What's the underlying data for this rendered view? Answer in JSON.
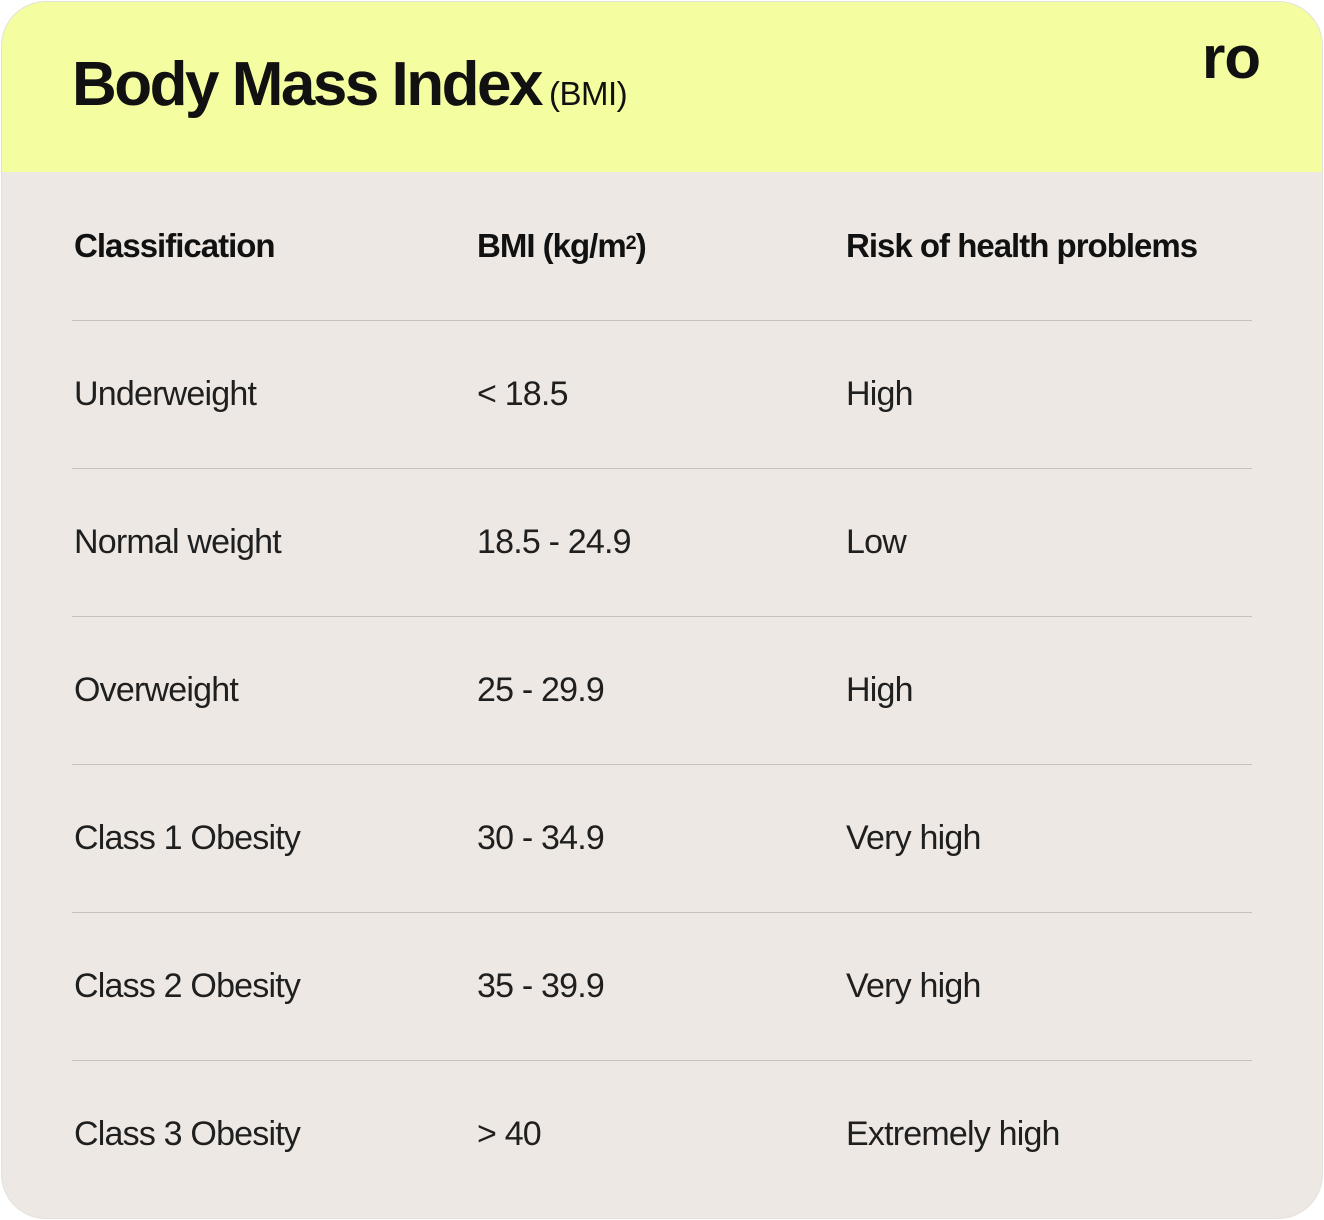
{
  "header": {
    "title": "Body Mass Index",
    "subtitle": "(BMI)",
    "logo_text": "ro",
    "background_color": "#f4fd9f"
  },
  "table": {
    "columns": [
      "Classification",
      "BMI (kg/m",
      "Risk of health problems"
    ],
    "bmi_unit_superscript": "2",
    "bmi_unit_close": ")",
    "rows": [
      {
        "classification": "Underweight",
        "bmi": "< 18.5",
        "risk": "High"
      },
      {
        "classification": "Normal weight",
        "bmi": "18.5 - 24.9",
        "risk": "Low"
      },
      {
        "classification": "Overweight",
        "bmi": "25 - 29.9",
        "risk": "High"
      },
      {
        "classification": "Class 1 Obesity",
        "bmi": "30 - 34.9",
        "risk": "Very high"
      },
      {
        "classification": "Class 2 Obesity",
        "bmi": "35 - 39.9",
        "risk": "Very high"
      },
      {
        "classification": "Class 3 Obesity",
        "bmi": "> 40",
        "risk": "Extremely high"
      }
    ]
  },
  "colors": {
    "card_background": "#ede8e3",
    "divider": "#c4c0bb",
    "text": "#1f1f1f"
  }
}
